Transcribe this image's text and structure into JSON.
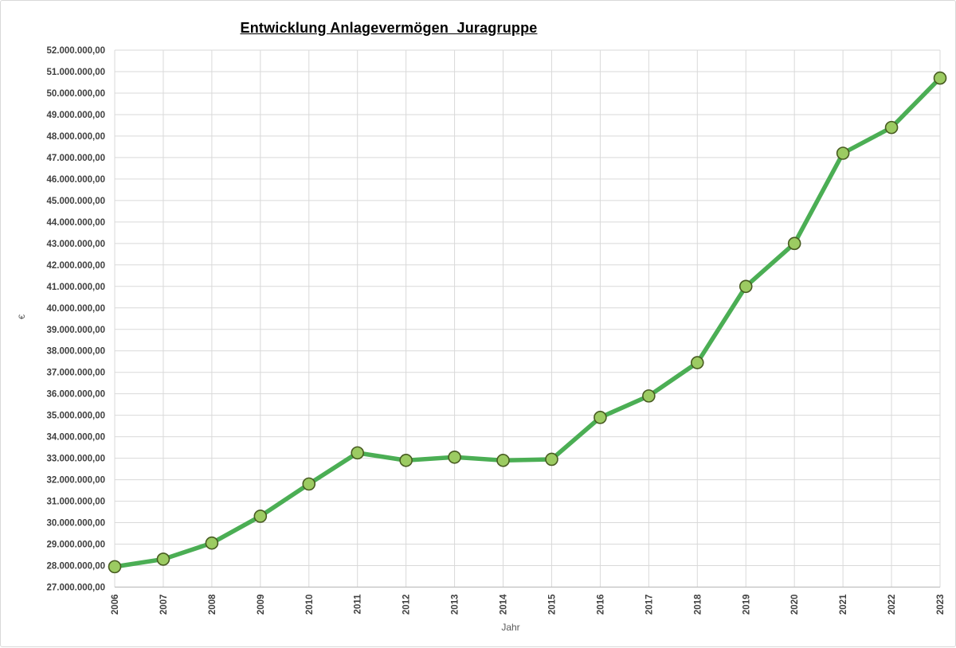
{
  "chart": {
    "title": "Entwicklung Anlagevermögen  Juragruppe",
    "x_axis_title": "Jahr",
    "y_axis_title": "€"
  },
  "chart_data": {
    "type": "line",
    "title": "Entwicklung Anlagevermögen  Juragruppe",
    "xlabel": "Jahr",
    "ylabel": "€",
    "categories": [
      "2006",
      "2007",
      "2008",
      "2009",
      "2010",
      "2011",
      "2012",
      "2013",
      "2014",
      "2015",
      "2016",
      "2017",
      "2018",
      "2019",
      "2020",
      "2021",
      "2022",
      "2023"
    ],
    "values": [
      27950000,
      28300000,
      29050000,
      30300000,
      31800000,
      33250000,
      32900000,
      33050000,
      32900000,
      32950000,
      34900000,
      35900000,
      37450000,
      41000000,
      43000000,
      47200000,
      48400000,
      50700000
    ],
    "ylim": [
      27000000,
      52000000
    ],
    "ytick_step": 1000000,
    "ytick_decimal_suffix": ",00",
    "grid": true,
    "legend": false,
    "colors": {
      "line": "#4bae54",
      "marker_fill": "#9ccb62",
      "marker_stroke": "#475b21",
      "grid": "#d9d9d9",
      "axis_line": "#bfbfbf",
      "tick_text": "#3f3f3f",
      "axis_title_text": "#595959"
    }
  }
}
